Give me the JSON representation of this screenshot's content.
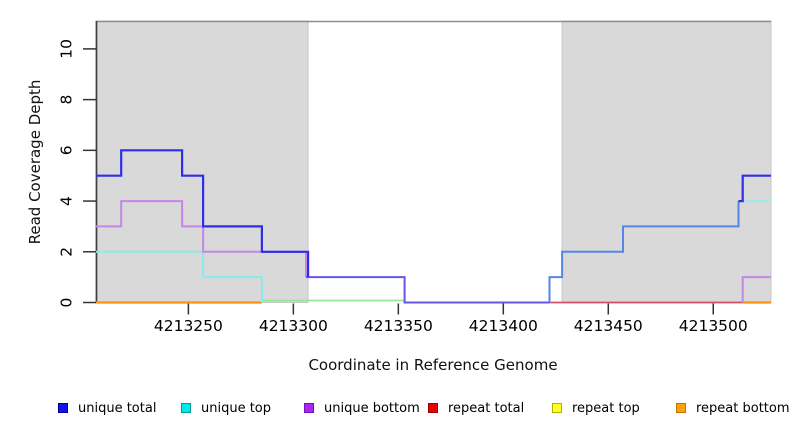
{
  "chart_data": {
    "type": "line",
    "subtype": "step-coverage-plot",
    "title": "",
    "xlabel": "Coordinate in Reference Genome",
    "ylabel": "Read Coverage Depth",
    "xlim": [
      4213206,
      4213527.5
    ],
    "ylim": [
      0,
      11.1
    ],
    "x_ticks": [
      4213250,
      4213300,
      4213350,
      4213400,
      4213450,
      4213500
    ],
    "y_ticks": [
      0,
      2,
      4,
      6,
      8,
      10
    ],
    "grid": false,
    "legend_position": "bottom",
    "highlight_regions": [
      {
        "name": "repeat-region-left",
        "x0": 4213206,
        "x1": 4213307,
        "fill": "#d9d9d9",
        "stroke": "#c6c6c6"
      },
      {
        "name": "repeat-region-right",
        "x0": 4213428,
        "x1": 4213527.5,
        "fill": "#d9d9d9",
        "stroke": "#c6c6c6"
      }
    ],
    "top_border_color": "#8f8f8f",
    "axis_line_color": "#404040",
    "series": [
      {
        "name": "unique total",
        "color": "#0000ee",
        "steps": [
          [
            4213206,
            5
          ],
          [
            4213218,
            6
          ],
          [
            4213247,
            5
          ],
          [
            4213257,
            3
          ],
          [
            4213285,
            2
          ],
          [
            4213307,
            1
          ],
          [
            4213353,
            0
          ],
          [
            4213422,
            1
          ],
          [
            4213428,
            2
          ],
          [
            4213457,
            3
          ],
          [
            4213512,
            4
          ],
          [
            4213514,
            5
          ],
          [
            4213527,
            5
          ]
        ]
      },
      {
        "name": "unique top",
        "color": "#00eeee",
        "steps": [
          [
            4213206,
            2
          ],
          [
            4213257,
            1
          ],
          [
            4213285,
            0
          ],
          [
            4213428,
            2
          ],
          [
            4213457,
            3
          ],
          [
            4213512,
            4
          ],
          [
            4213527,
            4
          ]
        ]
      },
      {
        "name": "unique bottom",
        "color": "#a020f0",
        "steps": [
          [
            4213206,
            3
          ],
          [
            4213218,
            4
          ],
          [
            4213247,
            3
          ],
          [
            4213257,
            2
          ],
          [
            4213306,
            1
          ],
          [
            4213353,
            0
          ],
          [
            4213514,
            1
          ],
          [
            4213527,
            1
          ]
        ]
      },
      {
        "name": "repeat total",
        "color": "#ee0000",
        "steps": [
          [
            4213206,
            0
          ],
          [
            4213527,
            0
          ]
        ]
      },
      {
        "name": "repeat top",
        "color": "#ffff00",
        "steps": [
          [
            4213206,
            0
          ],
          [
            4213527,
            0
          ]
        ]
      },
      {
        "name": "repeat bottom",
        "color": "#ffa500",
        "steps": [
          [
            4213206,
            0
          ],
          [
            4213527,
            0
          ]
        ]
      }
    ],
    "drawn_segments": [
      {
        "name": "repeat-total-baseline",
        "color": "#cf5068",
        "width": 1.8,
        "points": [
          [
            4213422,
            0
          ],
          [
            4213514,
            0
          ]
        ]
      },
      {
        "name": "repeat-bottom-baseline-left",
        "color": "#ff9012",
        "width": 2.2,
        "points": [
          [
            4213206,
            0
          ],
          [
            4213285,
            0
          ]
        ]
      },
      {
        "name": "repeat-bottom-baseline-right",
        "color": "#ff9012",
        "width": 2.2,
        "points": [
          [
            4213514,
            0
          ],
          [
            4213527.5,
            0
          ]
        ]
      },
      {
        "name": "repeat-top-baseline",
        "color": "#96e896",
        "width": 1.8,
        "dy": -2,
        "points": [
          [
            4213285,
            0
          ],
          [
            4213353,
            0
          ]
        ]
      },
      {
        "name": "unique-top-left",
        "color": "#8deae6",
        "width": 2,
        "points": [
          [
            4213206,
            2
          ],
          [
            4213257,
            2
          ],
          [
            4213257,
            1
          ],
          [
            4213285,
            1
          ],
          [
            4213285,
            0
          ]
        ]
      },
      {
        "name": "unique-bottom-left",
        "color": "#c487e6",
        "width": 2,
        "points": [
          [
            4213206,
            3
          ],
          [
            4213218,
            3
          ],
          [
            4213218,
            4
          ],
          [
            4213247,
            4
          ],
          [
            4213247,
            3
          ],
          [
            4213257,
            3
          ],
          [
            4213257,
            2
          ],
          [
            4213306,
            2
          ],
          [
            4213306,
            1
          ]
        ]
      },
      {
        "name": "unique-bottom-right",
        "color": "#c487e6",
        "width": 2,
        "points": [
          [
            4213514,
            0
          ],
          [
            4213514,
            1
          ],
          [
            4213527.5,
            1
          ]
        ]
      },
      {
        "name": "unique-total-bottom-overlap-mid",
        "color": "#6257e6",
        "width": 2,
        "points": [
          [
            4213306,
            1
          ],
          [
            4213353,
            1
          ],
          [
            4213353,
            0
          ],
          [
            4213422,
            0
          ]
        ]
      },
      {
        "name": "unique-total-top-overlap-right",
        "color": "#5585e8",
        "width": 2,
        "points": [
          [
            4213422,
            0
          ],
          [
            4213422,
            1
          ],
          [
            4213428,
            1
          ],
          [
            4213428,
            2
          ],
          [
            4213457,
            2
          ],
          [
            4213457,
            3
          ],
          [
            4213512,
            3
          ],
          [
            4213512,
            4
          ]
        ]
      },
      {
        "name": "unique-top-right",
        "color": "#9fe9e9",
        "width": 2,
        "points": [
          [
            4213512,
            4
          ],
          [
            4213527.5,
            4
          ]
        ]
      },
      {
        "name": "unique-total-left",
        "color": "#2d2fe8",
        "width": 2.2,
        "points": [
          [
            4213206,
            5
          ],
          [
            4213218,
            5
          ],
          [
            4213218,
            6
          ],
          [
            4213247,
            6
          ],
          [
            4213247,
            5
          ],
          [
            4213257,
            5
          ],
          [
            4213257,
            3
          ],
          [
            4213285,
            3
          ],
          [
            4213285,
            2
          ],
          [
            4213307,
            2
          ],
          [
            4213307,
            1
          ]
        ]
      },
      {
        "name": "unique-total-right",
        "color": "#2d2fe8",
        "width": 2.2,
        "points": [
          [
            4213512,
            4
          ],
          [
            4213514,
            4
          ],
          [
            4213514,
            5
          ],
          [
            4213527.5,
            5
          ]
        ]
      }
    ],
    "legend": [
      {
        "label": "unique total",
        "fill": "#1111ee",
        "border": "#0000aa"
      },
      {
        "label": "unique top",
        "fill": "#00e8e8",
        "border": "#009a9a"
      },
      {
        "label": "unique bottom",
        "fill": "#a826f0",
        "border": "#7a10b8"
      },
      {
        "label": "repeat total",
        "fill": "#ee0000",
        "border": "#990000"
      },
      {
        "label": "repeat top",
        "fill": "#ffff22",
        "border": "#b0b000"
      },
      {
        "label": "repeat bottom",
        "fill": "#ffa010",
        "border": "#c07300"
      }
    ]
  }
}
